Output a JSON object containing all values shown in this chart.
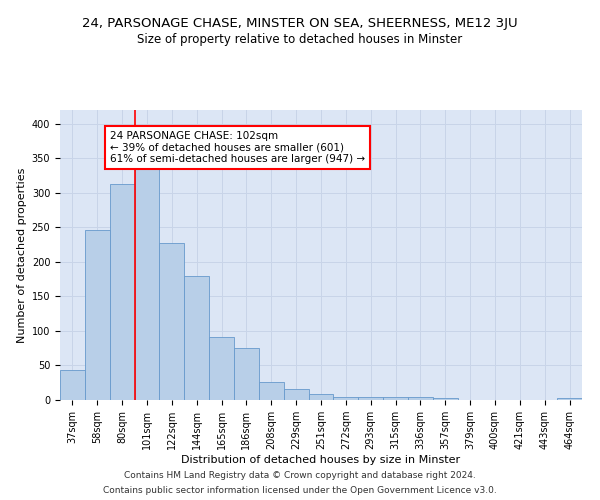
{
  "title": "24, PARSONAGE CHASE, MINSTER ON SEA, SHEERNESS, ME12 3JU",
  "subtitle": "Size of property relative to detached houses in Minster",
  "xlabel": "Distribution of detached houses by size in Minster",
  "ylabel": "Number of detached properties",
  "categories": [
    "37sqm",
    "58sqm",
    "80sqm",
    "101sqm",
    "122sqm",
    "144sqm",
    "165sqm",
    "186sqm",
    "208sqm",
    "229sqm",
    "251sqm",
    "272sqm",
    "293sqm",
    "315sqm",
    "336sqm",
    "357sqm",
    "379sqm",
    "400sqm",
    "421sqm",
    "443sqm",
    "464sqm"
  ],
  "values": [
    44,
    246,
    313,
    334,
    228,
    180,
    91,
    75,
    26,
    16,
    9,
    4,
    5,
    5,
    4,
    3,
    0,
    0,
    0,
    0,
    3
  ],
  "bar_color": "#b8cfe8",
  "bar_edge_color": "#6699cc",
  "vline_x_index": 3,
  "annotation_line1": "24 PARSONAGE CHASE: 102sqm",
  "annotation_line2": "← 39% of detached houses are smaller (601)",
  "annotation_line3": "61% of semi-detached houses are larger (947) →",
  "annotation_box_color": "white",
  "annotation_box_edge": "red",
  "vline_color": "red",
  "grid_color": "#c8d4e8",
  "background_color": "#dce6f5",
  "ylim": [
    0,
    420
  ],
  "yticks": [
    0,
    50,
    100,
    150,
    200,
    250,
    300,
    350,
    400
  ],
  "footer_line1": "Contains HM Land Registry data © Crown copyright and database right 2024.",
  "footer_line2": "Contains public sector information licensed under the Open Government Licence v3.0.",
  "title_fontsize": 9.5,
  "subtitle_fontsize": 8.5,
  "xlabel_fontsize": 8,
  "ylabel_fontsize": 8,
  "tick_fontsize": 7,
  "annotation_fontsize": 7.5,
  "footer_fontsize": 6.5
}
